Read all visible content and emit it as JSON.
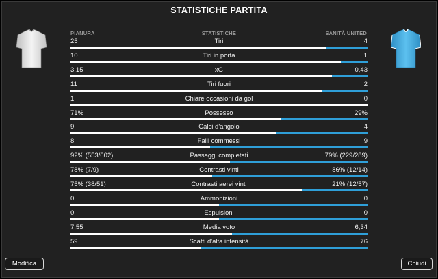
{
  "title": "STATISTICHE PARTITA",
  "headers": {
    "home": "PIANURA",
    "center": "STATISTICHE",
    "away": "SANITÀ UNITED"
  },
  "colors": {
    "home_kit": "#e8e8e8",
    "away_kit": "#49aee0",
    "away_bar": "#2f9fd8",
    "home_bar": "#ffffff"
  },
  "stats": [
    {
      "home": "25",
      "label": "Tiri",
      "away": "4",
      "home_share": 0.862
    },
    {
      "home": "10",
      "label": "Tiri in porta",
      "away": "1",
      "home_share": 0.909
    },
    {
      "home": "3,15",
      "label": "xG",
      "away": "0,43",
      "home_share": 0.88
    },
    {
      "home": "11",
      "label": "Tiri fuori",
      "away": "2",
      "home_share": 0.846
    },
    {
      "home": "1",
      "label": "Chiare occasioni da gol",
      "away": "0",
      "home_share": 1.0
    },
    {
      "home": "71%",
      "label": "Possesso",
      "away": "29%",
      "home_share": 0.71
    },
    {
      "home": "9",
      "label": "Calci d'angolo",
      "away": "4",
      "home_share": 0.692
    },
    {
      "home": "8",
      "label": "Falli commessi",
      "away": "9",
      "home_share": 0.471
    },
    {
      "home": "92% (553/602)",
      "label": "Passaggi completati",
      "away": "79% (229/289)",
      "home_share": 0.538
    },
    {
      "home": "78% (7/9)",
      "label": "Contrasti vinti",
      "away": "86% (12/14)",
      "home_share": 0.476
    },
    {
      "home": "75% (38/51)",
      "label": "Contrasti aerei vinti",
      "away": "21% (12/57)",
      "home_share": 0.781
    },
    {
      "home": "0",
      "label": "Ammonizioni",
      "away": "0",
      "home_share": 0.5
    },
    {
      "home": "0",
      "label": "Espulsioni",
      "away": "0",
      "home_share": 0.5
    },
    {
      "home": "7,55",
      "label": "Media voto",
      "away": "6,34",
      "home_share": 0.544
    },
    {
      "home": "59",
      "label": "Scatti d'alta intensità",
      "away": "76",
      "home_share": 0.437
    }
  ],
  "buttons": {
    "left": "Modifica",
    "right": "Chiudi"
  }
}
